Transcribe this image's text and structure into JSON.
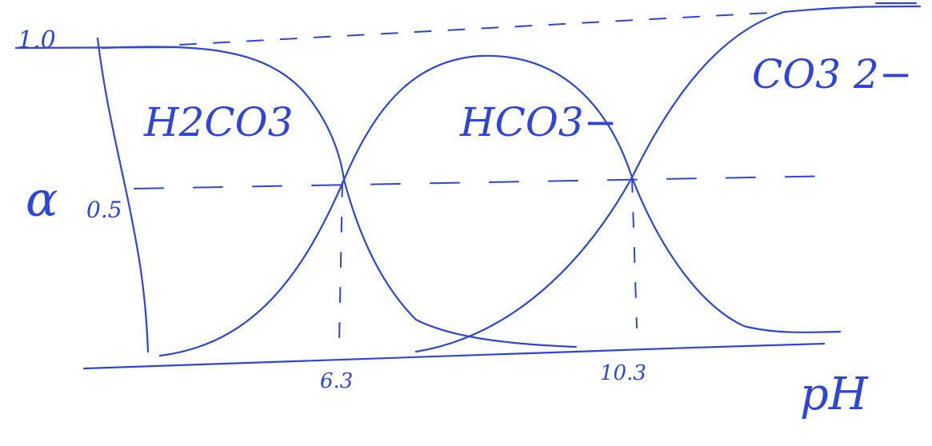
{
  "diagram": {
    "y_axis": {
      "symbol": "α",
      "top_label": "1.0",
      "mid_label": "0.5"
    },
    "x_axis": {
      "label": "pH",
      "ticks": [
        "6.3",
        "10.3"
      ]
    },
    "species": [
      "H2CO3",
      "HCO3−",
      "CO3 2−"
    ],
    "ink_color": "#2f45d6"
  }
}
